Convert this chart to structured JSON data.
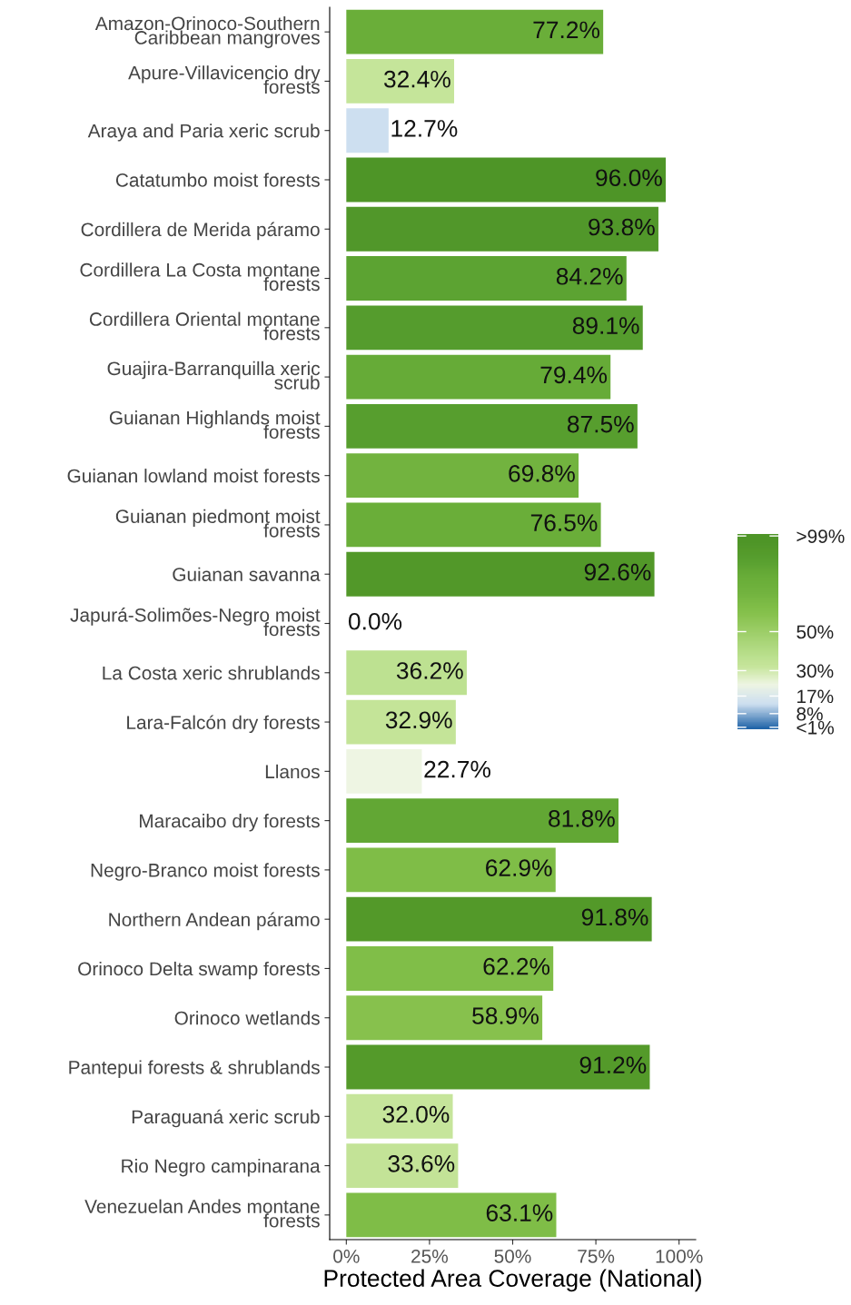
{
  "chart_data": {
    "type": "bar",
    "orientation": "horizontal",
    "xlabel": "Protected Area Coverage (National)",
    "categories": [
      "Amazon-Orinoco-Southern\nCaribbean mangroves",
      "Apure-Villavicencio dry\nforests",
      "Araya and Paria xeric scrub",
      "Catatumbo moist forests",
      "Cordillera de Merida páramo",
      "Cordillera La Costa montane\nforests",
      "Cordillera Oriental montane\nforests",
      "Guajira-Barranquilla xeric\nscrub",
      "Guianan Highlands moist\nforests",
      "Guianan lowland moist forests",
      "Guianan piedmont moist\nforests",
      "Guianan savanna",
      "Japurá-Solimões-Negro moist\nforests",
      "La Costa xeric shrublands",
      "Lara-Falcón dry forests",
      "Llanos",
      "Maracaibo dry forests",
      "Negro-Branco moist forests",
      "Northern Andean páramo",
      "Orinoco Delta swamp forests",
      "Orinoco wetlands",
      "Pantepui forests & shrublands",
      "Paraguaná xeric scrub",
      "Rio Negro campinarana",
      "Venezuelan Andes montane\nforests"
    ],
    "values": [
      77.2,
      32.4,
      12.7,
      96.0,
      93.8,
      84.2,
      89.1,
      79.4,
      87.5,
      69.8,
      76.5,
      92.6,
      0.0,
      36.2,
      32.9,
      22.7,
      81.8,
      62.9,
      91.8,
      62.2,
      58.9,
      91.2,
      32.0,
      33.6,
      63.1
    ],
    "value_labels": [
      "77.2%",
      "32.4%",
      "12.7%",
      "96.0%",
      "93.8%",
      "84.2%",
      "89.1%",
      "79.4%",
      "87.5%",
      "69.8%",
      "76.5%",
      "92.6%",
      "0.0%",
      "36.2%",
      "32.9%",
      "22.7%",
      "81.8%",
      "62.9%",
      "91.8%",
      "62.2%",
      "58.9%",
      "91.2%",
      "32.0%",
      "33.6%",
      "63.1%"
    ],
    "colors": [
      "#6aae39",
      "#c5e59a",
      "#cddff0",
      "#4e9527",
      "#51972a",
      "#5ca332",
      "#559c2d",
      "#66ab37",
      "#579e2e",
      "#72b33f",
      "#6aae39",
      "#529829",
      "#1f63a8",
      "#bde191",
      "#c4e498",
      "#eef5e3",
      "#62a734",
      "#7fbd47",
      "#539929",
      "#80be48",
      "#87c14d",
      "#549a2a",
      "#c6e59b",
      "#c3e397",
      "#7fbd47"
    ],
    "xlim": [
      -5,
      105
    ],
    "xticks": [
      {
        "value": 0,
        "label": "0%"
      },
      {
        "value": 25,
        "label": "25%"
      },
      {
        "value": 50,
        "label": "50%"
      },
      {
        "value": 75,
        "label": "75%"
      },
      {
        "value": 100,
        "label": "100%"
      }
    ],
    "clim": [
      0,
      100
    ],
    "cticks": [
      {
        "value": 99,
        "label": ">99%"
      },
      {
        "value": 50,
        "label": "50%"
      },
      {
        "value": 30,
        "label": "30%"
      },
      {
        "value": 17,
        "label": "17%"
      },
      {
        "value": 8,
        "label": "8%"
      },
      {
        "value": 1,
        "label": "<1%"
      }
    ],
    "grid": false,
    "legend": false
  }
}
